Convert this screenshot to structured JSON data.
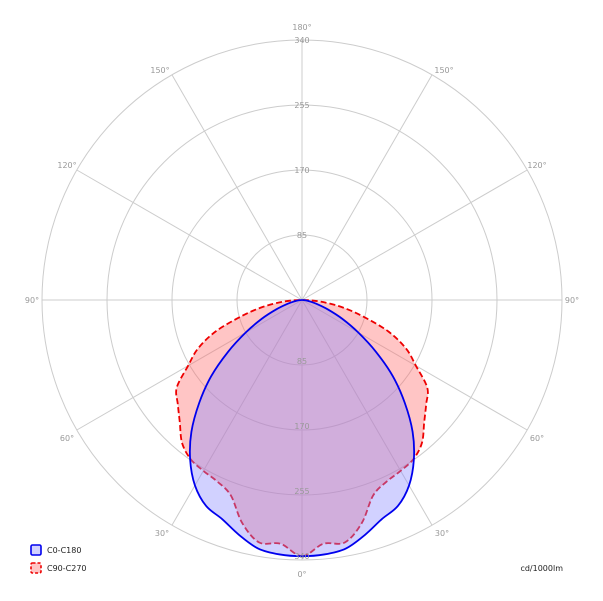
{
  "chart_data": {
    "type": "polar",
    "unit": "cd/1000lm",
    "rmax": 340,
    "radial_ticks": [
      "85",
      "170",
      "255",
      "340"
    ],
    "angle_ticks_upper": [
      "180°",
      "150°",
      "150°",
      "120°",
      "120°",
      "90°",
      "90°"
    ],
    "angle_ticks_lower": [
      "60°",
      "60°",
      "30°",
      "30°",
      "0°"
    ],
    "series": [
      {
        "name": "C0-C180",
        "color": "#0000ee",
        "fill": "rgba(140,140,255,0.40)",
        "dashed": false,
        "angles": [
          0,
          5,
          10,
          15,
          20,
          25,
          30,
          35,
          40,
          45,
          50,
          55,
          60,
          65,
          70,
          75,
          80,
          85,
          90
        ],
        "values": [
          335,
          334,
          330,
          318,
          305,
          297,
          280,
          255,
          225,
          190,
          155,
          118,
          85,
          58,
          36,
          20,
          10,
          4,
          0
        ]
      },
      {
        "name": "C90-C270",
        "color": "#ee0000",
        "fill": "rgba(255,110,110,0.40)",
        "dashed": true,
        "angles": [
          0,
          5,
          10,
          15,
          20,
          25,
          30,
          35,
          40,
          45,
          50,
          55,
          60,
          65,
          70,
          75,
          80,
          85,
          90
        ],
        "values": [
          335,
          320,
          322,
          302,
          272,
          262,
          258,
          254,
          244,
          226,
          212,
          200,
          172,
          150,
          120,
          82,
          52,
          24,
          0
        ]
      }
    ]
  }
}
